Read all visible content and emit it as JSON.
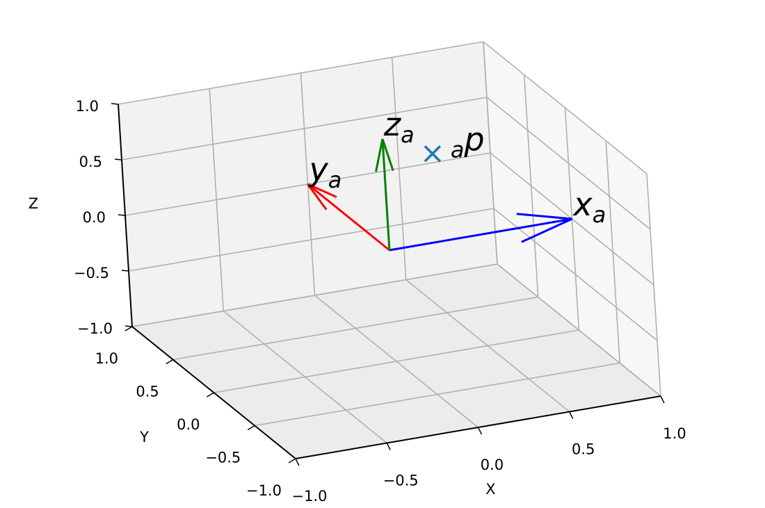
{
  "chart_data": {
    "type": "quiver3d",
    "xlabel": "X",
    "ylabel": "Y",
    "zlabel": "Z",
    "xlim": [
      -1,
      1
    ],
    "ylim": [
      -1,
      1
    ],
    "zlim": [
      -1,
      1
    ],
    "xticks": [
      {
        "value": -1,
        "label": "−1.0"
      },
      {
        "value": -0.5,
        "label": "−0.5"
      },
      {
        "value": 0,
        "label": "0.0"
      },
      0.5,
      {
        "value": 1,
        "label": "1.0"
      }
    ],
    "yticks": [
      {
        "value": -1,
        "label": "−1.0"
      },
      {
        "value": -0.5,
        "label": "−0.5"
      },
      {
        "value": 0,
        "label": "0.0"
      },
      0.5,
      {
        "value": 1,
        "label": "1.0"
      }
    ],
    "zticks": [
      {
        "value": -1,
        "label": "−1.0"
      },
      {
        "value": -0.5,
        "label": "−0.5"
      },
      {
        "value": 0,
        "label": "0.0"
      },
      0.5,
      {
        "value": 1,
        "label": "1.0"
      }
    ],
    "grid": true,
    "arrows": [
      {
        "label": "x",
        "subscript": "a",
        "color": "#0000ff",
        "origin": [
          0,
          0,
          0
        ],
        "vector": [
          1,
          0,
          0
        ]
      },
      {
        "label": "y",
        "subscript": "a",
        "color": "#ff0000",
        "origin": [
          0,
          0,
          0
        ],
        "vector": [
          0,
          1,
          0
        ]
      },
      {
        "label": "z",
        "subscript": "a",
        "color": "#008000",
        "origin": [
          0,
          0,
          0
        ],
        "vector": [
          0,
          0,
          1
        ]
      }
    ],
    "points": [
      {
        "label": "p",
        "prescript": "a",
        "color": "#1f77b4",
        "marker": "x",
        "position": [
          0.35,
          0.2,
          0.65
        ]
      }
    ]
  }
}
